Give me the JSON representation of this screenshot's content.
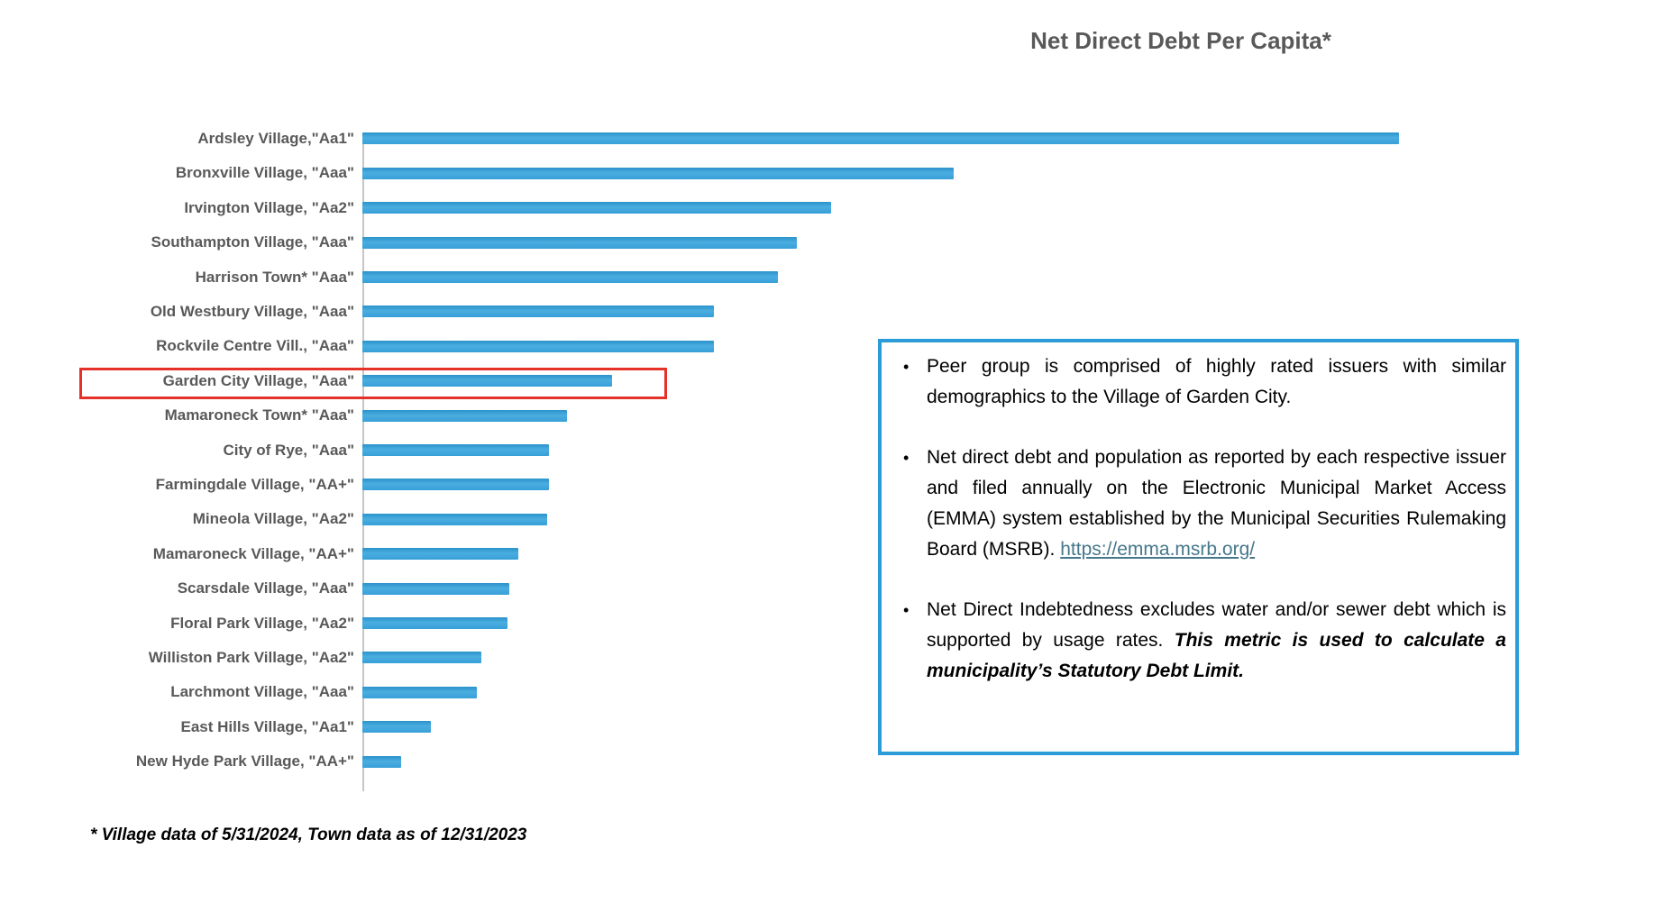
{
  "title": "Net Direct Debt Per Capita*",
  "footnote": "* Village data of 5/31/2024, Town data as of 12/31/2023",
  "colors": {
    "bar": "#379FD8",
    "bar_dark": "#2A93CB",
    "title_text": "#595959",
    "label_text": "#595959",
    "axis_line": "#C6C6C6",
    "highlight_border": "#E53228",
    "infobox_border": "#2B9CD8",
    "link": "#46788C",
    "body_text": "#000000"
  },
  "chart_data": {
    "type": "bar",
    "orientation": "horizontal",
    "title": "Net Direct Debt Per Capita*",
    "xlabel": "",
    "ylabel": "",
    "axis_values_shown": false,
    "value_unit": "relative bar length, percent of longest bar (no numeric axis labels are shown in the chart)",
    "categories": [
      "Ardsley Village,\"Aa1\"",
      "Bronxville Village, \"Aaa\"",
      "Irvington Village, \"Aa2\"",
      "Southampton Village, \"Aaa\"",
      "Harrison Town* \"Aaa\"",
      "Old Westbury Village, \"Aaa\"",
      "Rockvile Centre Vill., \"Aaa\"",
      "Garden City Village, \"Aaa\"",
      "Mamaroneck Town* \"Aaa\"",
      "City of Rye, \"Aaa\"",
      "Farmingdale Village, \"AA+\"",
      "Mineola Village, \"Aa2\"",
      "Mamaroneck Village, \"AA+\"",
      "Scarsdale Village, \"Aaa\"",
      "Floral Park Village, \"Aa2\"",
      "Williston Park Village, \"Aa2\"",
      "Larchmont Village, \"Aaa\"",
      "East Hills Village, \"Aa1\"",
      "New Hyde Park Village, \"AA+\""
    ],
    "values": [
      100,
      57.0,
      45.2,
      41.9,
      40.1,
      33.9,
      33.9,
      24.1,
      19.7,
      18.0,
      18.0,
      17.8,
      15.0,
      14.2,
      14.0,
      11.5,
      11.0,
      6.6,
      3.7
    ],
    "highlighted_category": "Garden City Village, \"Aaa\"",
    "highlight_index": 7,
    "legend": "none",
    "grid": "off"
  },
  "infobox": {
    "bullet_glyph": "•",
    "bullets": [
      {
        "text": "Peer group is comprised of highly rated issuers with similar demographics to the Village of Garden City."
      },
      {
        "text": "Net direct debt and population as reported by each respective issuer and filed annually on the Electronic Municipal Market Access (EMMA) system established by the Municipal Securities Rulemaking Board (MSRB).",
        "link": "https://emma.msrb.org/"
      },
      {
        "text": "Net Direct Indebtedness excludes water and/or sewer debt which is supported by usage rates.",
        "emphasis": "This metric is used to calculate a municipality’s Statutory Debt Limit."
      }
    ]
  }
}
